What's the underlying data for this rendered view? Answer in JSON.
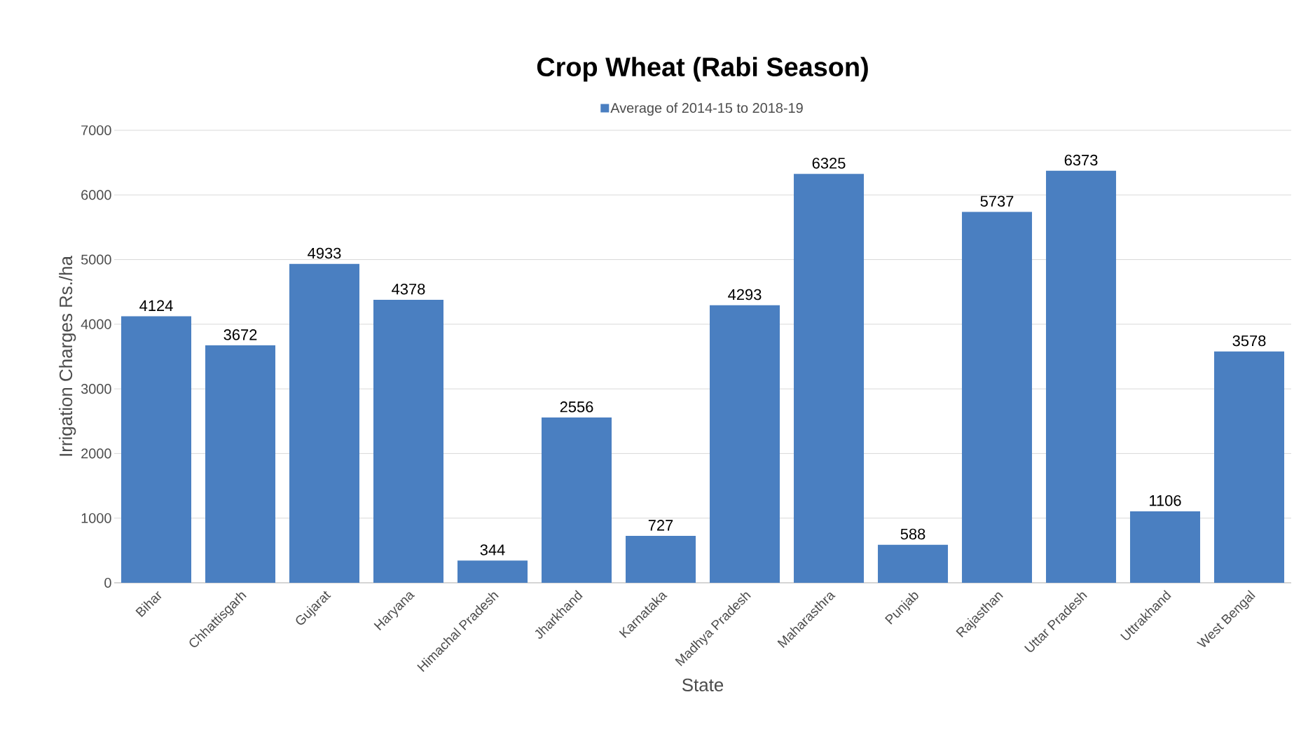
{
  "chart_data": {
    "type": "bar",
    "title": "Crop Wheat (Rabi Season)",
    "xlabel": "State",
    "ylabel": "Irrigation Charges Rs./ha",
    "categories": [
      "Bihar",
      "Chhattisgarh",
      "Gujarat",
      "Haryana",
      "Himachal Pradesh",
      "Jharkhand",
      "Karnataka",
      "Madhya Pradesh",
      "Maharasthra",
      "Punjab",
      "Rajasthan",
      "Uttar Pradesh",
      "Uttrakhand",
      "West Bengal"
    ],
    "series": [
      {
        "name": "Average of 2014-15 to 2018-19",
        "color": "#4a7fc1",
        "values": [
          4124,
          3672,
          4933,
          4378,
          344,
          2556,
          727,
          4293,
          6325,
          588,
          5737,
          6373,
          1106,
          3578
        ]
      }
    ],
    "ylim": [
      0,
      7000
    ],
    "yticks": [
      0,
      1000,
      2000,
      3000,
      4000,
      5000,
      6000,
      7000
    ],
    "grid": "y",
    "legend": "top",
    "data_labels": true
  }
}
